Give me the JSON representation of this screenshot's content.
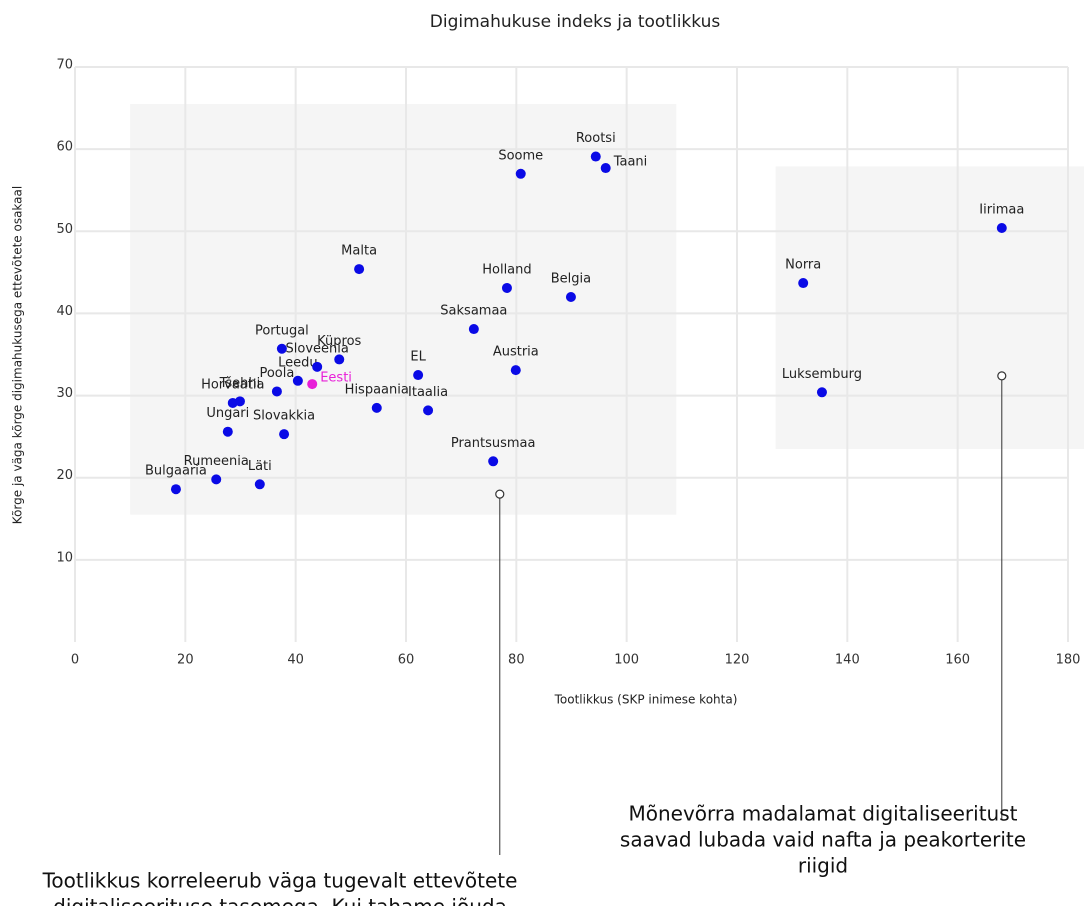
{
  "chart_data": {
    "type": "scatter",
    "title": "Digimahukuse indeks ja tootlikkus",
    "x_label": "Tootlikkus (SKP inimese kohta)",
    "y_label": "Kõrge ja väga kõrge digimahukusega ettevõtete osakaal",
    "xlim": [
      0,
      180
    ],
    "ylim": [
      0,
      70
    ],
    "xticks": [
      0,
      20,
      40,
      60,
      80,
      100,
      120,
      140,
      160,
      180
    ],
    "yticks": [
      10,
      20,
      30,
      40,
      50,
      60,
      70
    ],
    "grid": true,
    "color": "#0a0ae6",
    "highlight_color": "#e81fd8",
    "highlight": "Eesti",
    "labels": [
      "Bulgaaria",
      "Rumeenia",
      "Läti",
      "Ungari",
      "Horvaatia",
      "Tšehhi",
      "Slovakkia",
      "Poola",
      "Leedu",
      "Eesti",
      "Portugal",
      "Sloveenia",
      "Küpros",
      "Malta",
      "Hispaania",
      "Itaalia",
      "EL",
      "Saksamaa",
      "Austria",
      "Prantsusmaa",
      "Holland",
      "Belgia",
      "Soome",
      "Rootsi",
      "Taani",
      "Norra",
      "Luksemburg",
      "Iirimaa"
    ],
    "x": [
      18.3,
      25.6,
      33.5,
      27.7,
      28.6,
      29.9,
      37.9,
      36.6,
      40.4,
      43.0,
      37.5,
      43.9,
      47.9,
      51.5,
      54.7,
      64.0,
      62.2,
      72.3,
      79.9,
      75.8,
      78.3,
      89.9,
      80.8,
      94.4,
      96.2,
      132.0,
      135.4,
      168.0
    ],
    "values": [
      18.6,
      19.8,
      19.2,
      25.6,
      29.1,
      29.3,
      25.3,
      30.5,
      31.8,
      31.4,
      35.7,
      33.5,
      34.4,
      45.4,
      28.5,
      28.2,
      32.5,
      38.1,
      33.1,
      22.0,
      43.1,
      42.0,
      57.0,
      59.1,
      57.7,
      43.7,
      30.4,
      50.4
    ],
    "regions": [
      {
        "xlim": [
          10,
          109
        ],
        "ylim": [
          15.5,
          65.5
        ]
      },
      {
        "xlim": [
          127,
          183
        ],
        "ylim": [
          23.5,
          57.9
        ]
      }
    ],
    "annotations": [
      {
        "x": 77,
        "y": 18,
        "lines": [
          "Tootlikkus korreleerub väga tugevalt ettevõtete",
          "digitaliseerituse tasemega. Kui tahame jõuda"
        ]
      },
      {
        "x": 168,
        "y": 32.4,
        "lines": [
          "Mõnevõrra madalamat digitaliseeritust",
          "saavad lubada vaid nafta ja peakorterite",
          "riigid"
        ]
      }
    ]
  }
}
